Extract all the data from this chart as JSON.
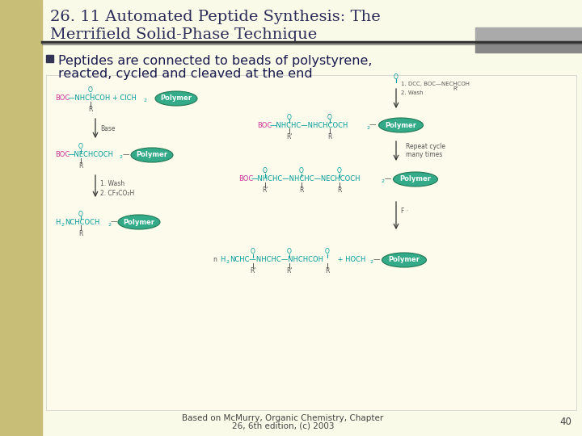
{
  "background_color": "#FAFAE8",
  "left_bar_color": "#C8BE78",
  "title_line1": "26. 11 Automated Peptide Synthesis: The",
  "title_line2": "Merrifield Solid-Phase Technique",
  "title_color": "#2B2B5A",
  "title_fontsize": 14,
  "divider_color": "#333333",
  "bullet_text_line1": "Peptides are connected to beads of polystyrene,",
  "bullet_text_line2": "reacted, cycled and cleaved at the end",
  "bullet_color": "#1A1A50",
  "bullet_fontsize": 11.5,
  "footer_text_line1": "Based on McMurry, Organic Chemistry, Chapter",
  "footer_text_line2": "26, 6th edition, (c) 2003",
  "footer_number": "40",
  "footer_fontsize": 7.5,
  "footer_color": "#444444",
  "diagram_bg": "#FDFCEC",
  "cyan_color": "#009999",
  "pink_color": "#CC3399",
  "teal_ellipse": "#33AA88",
  "small_text_color": "#555555"
}
